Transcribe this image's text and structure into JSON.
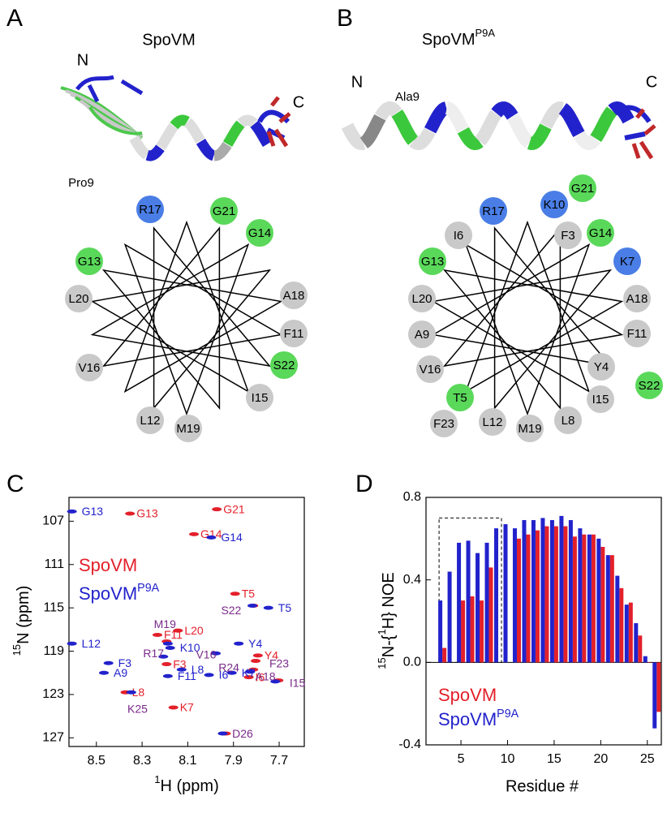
{
  "panels": {
    "A": {
      "letter": "A",
      "title": "SpoVM",
      "n_label": "N",
      "c_label": "C",
      "residue_label": "Pro9",
      "wheel": [
        {
          "label": "R17",
          "color": "#4a7ee6"
        },
        {
          "label": "G21",
          "color": "#5ad85a"
        },
        {
          "label": "G14",
          "color": "#5ad85a"
        },
        {
          "label": "G13",
          "color": "#5ad85a"
        },
        {
          "label": "L20",
          "color": "#c9c9c9"
        },
        {
          "label": "A18",
          "color": "#c9c9c9"
        },
        {
          "label": "F11",
          "color": "#c9c9c9"
        },
        {
          "label": "V16",
          "color": "#c9c9c9"
        },
        {
          "label": "S22",
          "color": "#5ad85a"
        },
        {
          "label": "I15",
          "color": "#c9c9c9"
        },
        {
          "label": "L12",
          "color": "#c9c9c9"
        },
        {
          "label": "M19",
          "color": "#c9c9c9"
        }
      ]
    },
    "B": {
      "letter": "B",
      "title": "SpoVM",
      "title_superscript": "P9A",
      "n_label": "N",
      "c_label": "C",
      "residue_label": "Ala9",
      "wheel": [
        {
          "label": "R17",
          "color": "#4a7ee6"
        },
        {
          "label": "K10",
          "color": "#4a7ee6"
        },
        {
          "label": "G21",
          "color": "#5ad85a"
        },
        {
          "label": "F3",
          "color": "#c9c9c9"
        },
        {
          "label": "I6",
          "color": "#c9c9c9"
        },
        {
          "label": "G14",
          "color": "#5ad85a"
        },
        {
          "label": "K7",
          "color": "#4a7ee6"
        },
        {
          "label": "G13",
          "color": "#5ad85a"
        },
        {
          "label": "L20",
          "color": "#c9c9c9"
        },
        {
          "label": "A18",
          "color": "#c9c9c9"
        },
        {
          "label": "A9",
          "color": "#c9c9c9"
        },
        {
          "label": "F11",
          "color": "#c9c9c9"
        },
        {
          "label": "V16",
          "color": "#c9c9c9"
        },
        {
          "label": "Y4",
          "color": "#c9c9c9"
        },
        {
          "label": "S22",
          "color": "#5ad85a"
        },
        {
          "label": "T5",
          "color": "#5ad85a"
        },
        {
          "label": "I15",
          "color": "#c9c9c9"
        },
        {
          "label": "F23",
          "color": "#c9c9c9"
        },
        {
          "label": "L12",
          "color": "#c9c9c9"
        },
        {
          "label": "M19",
          "color": "#c9c9c9"
        },
        {
          "label": "L8",
          "color": "#c9c9c9"
        }
      ]
    }
  },
  "chart_data": [
    {
      "type": "scatter",
      "letter": "C",
      "x_label_parts": [
        {
          "text": "1",
          "sup": true
        },
        {
          "text": "H (ppm)",
          "sup": false
        }
      ],
      "y_label_parts": [
        {
          "text": "15",
          "sup": true
        },
        {
          "text": "N (ppm)",
          "sup": false
        }
      ],
      "xlim": [
        8.62,
        7.59
      ],
      "ylim": [
        104.8,
        127.8
      ],
      "xticks": [
        8.5,
        8.3,
        8.1,
        7.9,
        7.7
      ],
      "yticks": [
        107,
        111,
        115,
        119,
        123,
        127
      ],
      "series": [
        {
          "name": "SpoVM",
          "color": "#e3202a",
          "x": [
            8.36,
            7.98,
            8.08,
            7.9,
            7.82,
            8.24,
            8.15,
            8.2,
            8.38,
            8.17,
            7.84,
            7.8,
            7.81,
            7.82,
            7.71,
            7.94,
            8.2
          ],
          "values": [
            106.3,
            105.9,
            108.2,
            113.7,
            114.8,
            117.5,
            117.1,
            120.2,
            122.8,
            124.2,
            121.4,
            119.4,
            119.9,
            120.7,
            121.7,
            126.6,
            118.1
          ],
          "labels": [
            "G13",
            "G21",
            "G14",
            "T5",
            null,
            "F11",
            "L20",
            "F3",
            "L8",
            "K7",
            "I6",
            "Y4",
            null,
            null,
            null,
            null,
            null
          ]
        },
        {
          "name": "SpoVM",
          "name_superscript": "P9A",
          "color": "#2222cc",
          "x": [
            8.6,
            7.99,
            7.74,
            7.81,
            8.6,
            8.17,
            8.44,
            8.46,
            8.12,
            8.18,
            8.0,
            7.9,
            7.87,
            7.97,
            8.2,
            8.34,
            7.94,
            7.71,
            7.82,
            8.18
          ],
          "values": [
            106.1,
            108.5,
            115.0,
            114.8,
            118.3,
            118.7,
            120.1,
            121.0,
            120.7,
            121.3,
            121.2,
            121.0,
            118.3,
            119.2,
            119.5,
            122.8,
            126.6,
            121.8,
            120.9,
            118.3
          ],
          "labels": [
            "G13",
            "G14",
            "T5",
            null,
            "L12",
            "K10",
            "F3",
            "A9",
            "L8",
            "F11",
            "I6",
            "K7",
            "Y4",
            null,
            null,
            null,
            null,
            null,
            null,
            null
          ]
        }
      ],
      "annotation_color": "#7a2a8a",
      "annotations": [
        {
          "text": "M19",
          "x": 8.2,
          "y": 116.6
        },
        {
          "text": "R17",
          "x": 8.25,
          "y": 119.3
        },
        {
          "text": "V16",
          "x": 8.02,
          "y": 119.4
        },
        {
          "text": "S22",
          "x": 7.91,
          "y": 115.3
        },
        {
          "text": "R24",
          "x": 7.92,
          "y": 120.6
        },
        {
          "text": "A18",
          "x": 7.76,
          "y": 121.4
        },
        {
          "text": "F23",
          "x": 7.7,
          "y": 120.2
        },
        {
          "text": "I15",
          "x": 7.62,
          "y": 122.0
        },
        {
          "text": "K25",
          "x": 8.32,
          "y": 124.4
        },
        {
          "text": "D26",
          "x": 7.86,
          "y": 126.7
        }
      ]
    },
    {
      "type": "bar",
      "letter": "D",
      "x_label": "Residue #",
      "y_label_parts": [
        {
          "text": "15",
          "sup": true
        },
        {
          "text": "N-{",
          "sup": false
        },
        {
          "text": "1",
          "sup": true
        },
        {
          "text": "H} NOE",
          "sup": false
        }
      ],
      "xlim": [
        1.25,
        26.5
      ],
      "ylim": [
        -0.4,
        0.8
      ],
      "xticks": [
        5,
        10,
        15,
        20,
        25
      ],
      "yticks": [
        {
          "value": -0.4,
          "label": "-0.4"
        },
        {
          "value": 0,
          "label": "0.0"
        },
        {
          "value": 0.4,
          "label": "0.4"
        },
        {
          "value": 0.8,
          "label": "0.8"
        }
      ],
      "x": [
        3,
        4,
        5,
        6,
        7,
        8,
        9,
        10,
        11,
        12,
        13,
        14,
        15,
        16,
        17,
        18,
        19,
        20,
        21,
        22,
        23,
        24,
        25,
        26
      ],
      "series": [
        {
          "name": "SpoVM",
          "color": "#e3202a",
          "values": [
            0.07,
            null,
            0.3,
            0.32,
            0.3,
            0.46,
            null,
            null,
            0.6,
            0.62,
            0.64,
            0.66,
            0.66,
            0.66,
            0.61,
            0.62,
            0.62,
            0.56,
            0.52,
            0.36,
            0.29,
            0.13,
            0.0,
            -0.24
          ]
        },
        {
          "name": "SpoVM",
          "name_superscript": "P9A",
          "color": "#2222cc",
          "values": [
            0.3,
            0.44,
            0.58,
            0.59,
            0.53,
            0.58,
            0.65,
            0.67,
            0.65,
            0.69,
            0.69,
            0.7,
            0.69,
            0.71,
            0.69,
            0.65,
            0.62,
            0.6,
            0.52,
            0.42,
            0.28,
            0.19,
            0.03,
            -0.32
          ]
        }
      ]
    }
  ]
}
